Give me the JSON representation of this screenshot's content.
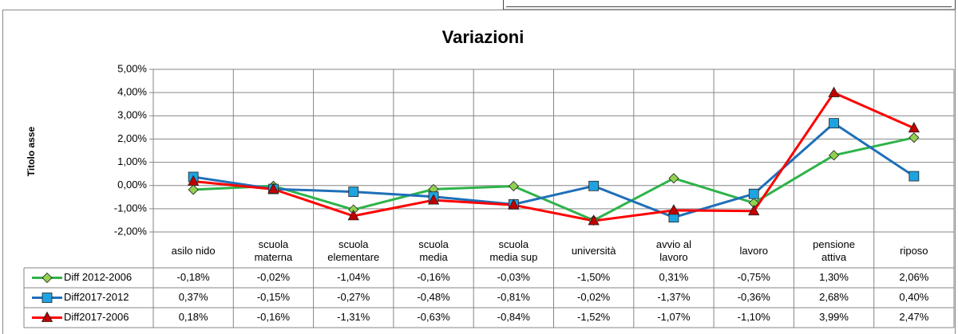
{
  "chart_data": {
    "type": "line",
    "title": "Variazioni",
    "y_label": "Titolo asse",
    "categories": [
      "asilo nido",
      "scuola\nmaterna",
      "scuola\nelementare",
      "scuola\nmedia",
      "scuola\nmedia sup",
      "università",
      "avvio al\nlavoro",
      "lavoro",
      "pensione\nattiva",
      "riposo"
    ],
    "series": [
      {
        "name": "Diff 2012-2006",
        "color": "#2eb34a",
        "marker": "diamond",
        "marker_color": "#92d050",
        "values": [
          -0.18,
          -0.02,
          -1.04,
          -0.16,
          -0.03,
          -1.5,
          0.31,
          -0.75,
          1.3,
          2.06
        ],
        "value_labels": [
          "-0,18%",
          "-0,02%",
          "-1,04%",
          "-0,16%",
          "-0,03%",
          "-1,50%",
          "0,31%",
          "-0,75%",
          "1,30%",
          "2,06%"
        ]
      },
      {
        "name": "Diff2017-2012",
        "color": "#1f6fb8",
        "marker": "square",
        "marker_color": "#1fa3e0",
        "values": [
          0.37,
          -0.15,
          -0.27,
          -0.48,
          -0.81,
          -0.02,
          -1.37,
          -0.36,
          2.68,
          0.4
        ],
        "value_labels": [
          "0,37%",
          "-0,15%",
          "-0,27%",
          "-0,48%",
          "-0,81%",
          "-0,02%",
          "-1,37%",
          "-0,36%",
          "2,68%",
          "0,40%"
        ]
      },
      {
        "name": "Diff2017-2006",
        "color": "#ff0000",
        "marker": "triangle",
        "marker_color": "#c00000",
        "values": [
          0.18,
          -0.16,
          -1.31,
          -0.63,
          -0.84,
          -1.52,
          -1.07,
          -1.1,
          3.99,
          2.47
        ],
        "value_labels": [
          "0,18%",
          "-0,16%",
          "-1,31%",
          "-0,63%",
          "-0,84%",
          "-1,52%",
          "-1,07%",
          "-1,10%",
          "3,99%",
          "2,47%"
        ]
      }
    ],
    "ylim": [
      -2,
      5
    ],
    "yticks": [
      {
        "value": -2,
        "label": "-2,00%"
      },
      {
        "value": -1,
        "label": "-1,00%"
      },
      {
        "value": 0,
        "label": "0,00%"
      },
      {
        "value": 1,
        "label": "1,00%"
      },
      {
        "value": 2,
        "label": "2,00%"
      },
      {
        "value": 3,
        "label": "3,00%"
      },
      {
        "value": 4,
        "label": "4,00%"
      },
      {
        "value": 5,
        "label": "5,00%"
      }
    ],
    "grid": true
  }
}
